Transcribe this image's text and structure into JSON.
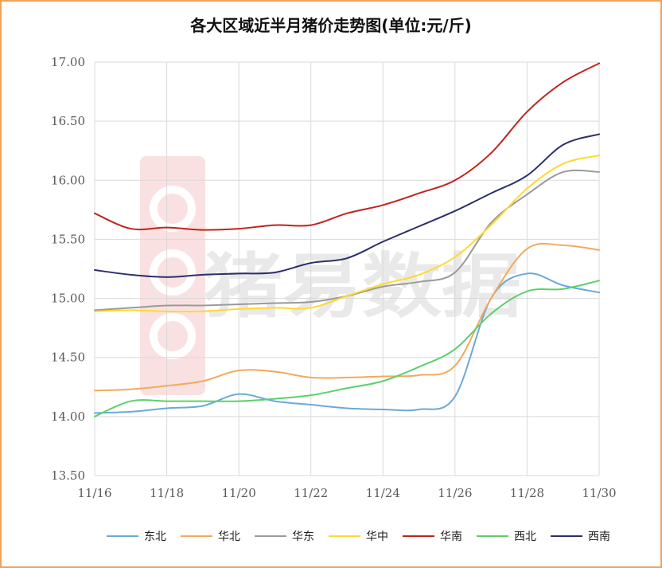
{
  "chart_data": {
    "type": "line",
    "title": "各大区域近半月猪价走势图(单位:元/斤)",
    "x": [
      "11/16",
      "11/17",
      "11/18",
      "11/19",
      "11/20",
      "11/21",
      "11/22",
      "11/23",
      "11/24",
      "11/25",
      "11/26",
      "11/27",
      "11/28",
      "11/29",
      "11/30"
    ],
    "x_tick_labels": [
      "11/16",
      "11/18",
      "11/20",
      "11/22",
      "11/24",
      "11/26",
      "11/28",
      "11/30"
    ],
    "y_tick_labels": [
      "13.50",
      "14.00",
      "14.50",
      "15.00",
      "15.50",
      "16.00",
      "16.50",
      "17.00"
    ],
    "ylim": [
      13.5,
      17.0
    ],
    "grid": true,
    "legend_position": "bottom",
    "watermark": "猪易数据",
    "series": [
      {
        "name": "东北",
        "color": "#6aaad8",
        "values": [
          14.03,
          14.04,
          14.07,
          14.09,
          14.19,
          14.13,
          14.1,
          14.07,
          14.06,
          14.06,
          14.17,
          15.0,
          15.21,
          15.11,
          15.05
        ]
      },
      {
        "name": "华北",
        "color": "#f2aa5c",
        "values": [
          14.22,
          14.23,
          14.26,
          14.3,
          14.39,
          14.38,
          14.33,
          14.33,
          14.34,
          14.35,
          14.43,
          15.0,
          15.42,
          15.45,
          15.41
        ]
      },
      {
        "name": "华东",
        "color": "#9a9a9a",
        "values": [
          14.9,
          14.92,
          14.94,
          14.94,
          14.95,
          14.96,
          14.97,
          15.02,
          15.1,
          15.14,
          15.22,
          15.64,
          15.88,
          16.07,
          16.07
        ]
      },
      {
        "name": "华中",
        "color": "#ffd92e",
        "values": [
          14.89,
          14.9,
          14.89,
          14.89,
          14.91,
          14.92,
          14.92,
          15.02,
          15.12,
          15.2,
          15.35,
          15.62,
          15.93,
          16.14,
          16.21
        ]
      },
      {
        "name": "华南",
        "color": "#c0241d",
        "values": [
          15.72,
          15.59,
          15.6,
          15.58,
          15.59,
          15.62,
          15.62,
          15.72,
          15.79,
          15.89,
          16.0,
          16.23,
          16.58,
          16.83,
          16.99
        ]
      },
      {
        "name": "西北",
        "color": "#5cd06a",
        "values": [
          14.0,
          14.13,
          14.13,
          14.13,
          14.13,
          14.15,
          14.18,
          14.24,
          14.3,
          14.42,
          14.57,
          14.87,
          15.06,
          15.08,
          15.15
        ]
      },
      {
        "name": "西南",
        "color": "#2d2f6b",
        "values": [
          15.24,
          15.2,
          15.18,
          15.2,
          15.21,
          15.22,
          15.3,
          15.34,
          15.48,
          15.61,
          15.74,
          15.89,
          16.04,
          16.3,
          16.39
        ]
      }
    ]
  }
}
